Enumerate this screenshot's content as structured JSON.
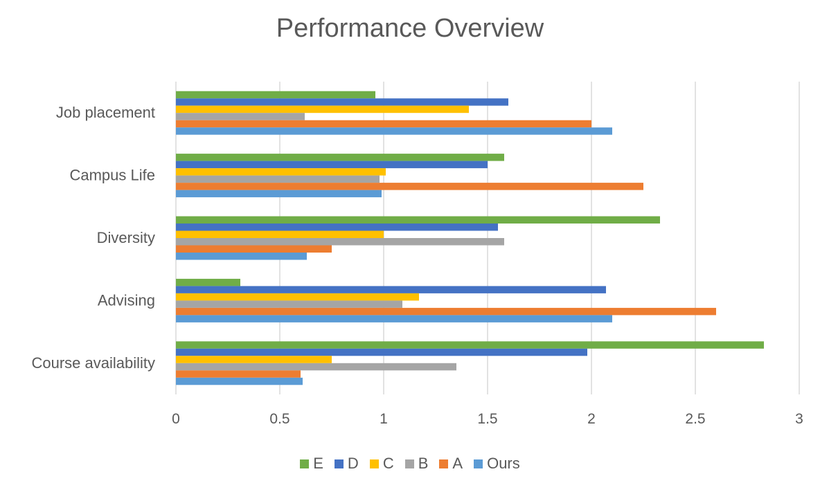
{
  "chart_data": {
    "type": "bar",
    "orientation": "horizontal",
    "title": "Performance Overview",
    "categories": [
      "Job placement",
      "Campus Life",
      "Diversity",
      "Advising",
      "Course availability"
    ],
    "series": [
      {
        "name": "E",
        "color": "#70AD47",
        "values": [
          0.96,
          1.58,
          2.33,
          0.31,
          2.83
        ]
      },
      {
        "name": "D",
        "color": "#4472C4",
        "values": [
          1.6,
          1.5,
          1.55,
          2.07,
          1.98
        ]
      },
      {
        "name": "C",
        "color": "#FFC000",
        "values": [
          1.41,
          1.01,
          1.0,
          1.17,
          0.75
        ]
      },
      {
        "name": "B",
        "color": "#A5A5A5",
        "values": [
          0.62,
          0.98,
          1.58,
          1.09,
          1.35
        ]
      },
      {
        "name": "A",
        "color": "#ED7D31",
        "values": [
          2.0,
          2.25,
          0.75,
          2.6,
          0.6
        ]
      },
      {
        "name": "Ours",
        "color": "#5B9BD5",
        "values": [
          2.1,
          0.99,
          0.63,
          2.1,
          0.61
        ]
      }
    ],
    "xlim": [
      0,
      3
    ],
    "x_ticks": [
      "0",
      "0.5",
      "1",
      "1.5",
      "2",
      "2.5",
      "3"
    ],
    "grid": true,
    "legend_position": "bottom"
  }
}
